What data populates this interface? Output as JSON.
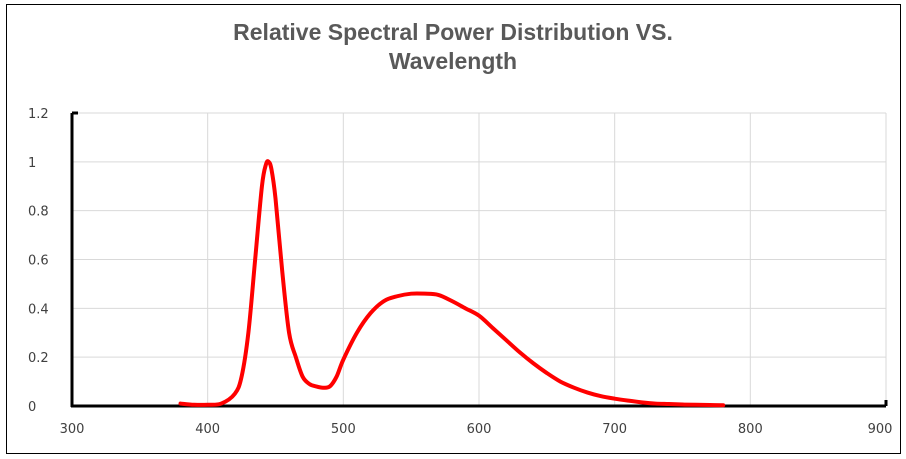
{
  "chart_data": {
    "type": "line",
    "title_lines": [
      "Relative Spectral Power Distribution VS.",
      "Wavelength"
    ],
    "xlabel": "",
    "ylabel": "",
    "xlim": [
      300,
      900
    ],
    "ylim": [
      0,
      1.2
    ],
    "x_ticks": [
      "300",
      "400",
      "500",
      "600",
      "700",
      "800",
      "900"
    ],
    "y_ticks": [
      "0",
      "0.2",
      "0.4",
      "0.6",
      "0.8",
      "1",
      "1.2"
    ],
    "grid": true,
    "legend": "none",
    "series": [
      {
        "color": "#ff0000",
        "x": [
          380,
          390,
          400,
          410,
          420,
          425,
          430,
          435,
          440,
          443,
          445,
          447,
          450,
          455,
          460,
          465,
          470,
          475,
          480,
          485,
          490,
          495,
          500,
          510,
          520,
          530,
          540,
          550,
          560,
          570,
          580,
          590,
          600,
          610,
          620,
          630,
          640,
          650,
          660,
          670,
          680,
          690,
          700,
          710,
          720,
          730,
          740,
          750,
          760,
          770,
          780
        ],
        "y": [
          0.01,
          0.005,
          0.005,
          0.01,
          0.05,
          0.12,
          0.3,
          0.6,
          0.9,
          0.99,
          1.0,
          0.97,
          0.85,
          0.55,
          0.3,
          0.2,
          0.12,
          0.09,
          0.08,
          0.075,
          0.08,
          0.12,
          0.19,
          0.3,
          0.38,
          0.43,
          0.45,
          0.46,
          0.46,
          0.455,
          0.43,
          0.4,
          0.37,
          0.32,
          0.27,
          0.22,
          0.175,
          0.135,
          0.1,
          0.075,
          0.055,
          0.04,
          0.03,
          0.022,
          0.015,
          0.01,
          0.008,
          0.006,
          0.005,
          0.004,
          0.003
        ]
      }
    ]
  }
}
